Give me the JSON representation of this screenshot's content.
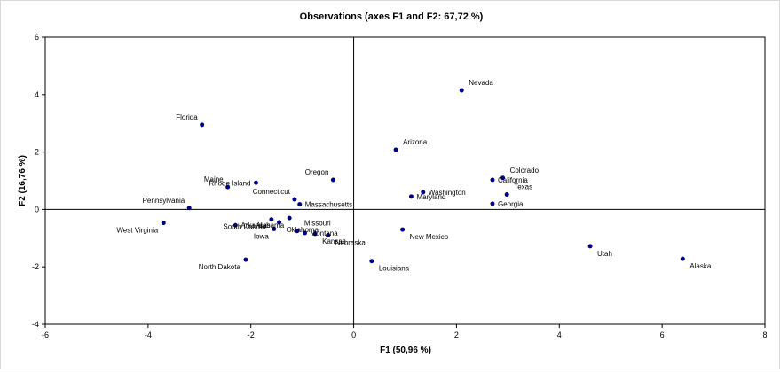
{
  "chart_data": {
    "type": "scatter",
    "title": "Observations (axes F1 and F2: 67,72 %)",
    "xlabel": "F1 (50,96 %)",
    "ylabel": "F2 (16,76 %)",
    "xlim": [
      -6,
      8
    ],
    "ylim": [
      -4,
      6
    ],
    "xticks": [
      -6,
      -4,
      -2,
      0,
      2,
      4,
      6,
      8
    ],
    "yticks": [
      -4,
      -2,
      0,
      2,
      4,
      6
    ],
    "grid": false,
    "marker_color": "#000080",
    "points": [
      {
        "name": "Nevada",
        "x": 2.1,
        "y": 4.15
      },
      {
        "name": "Florida",
        "x": -2.95,
        "y": 2.95
      },
      {
        "name": "Arizona",
        "x": 0.82,
        "y": 2.08
      },
      {
        "name": "California",
        "x": 2.7,
        "y": 1.03
      },
      {
        "name": "Colorado",
        "x": 2.9,
        "y": 1.1
      },
      {
        "name": "Rhode Island",
        "x": -1.9,
        "y": 0.93
      },
      {
        "name": "Maine",
        "x": -2.45,
        "y": 0.78
      },
      {
        "name": "Oregon",
        "x": -0.4,
        "y": 1.03
      },
      {
        "name": "Washington",
        "x": 1.35,
        "y": 0.6
      },
      {
        "name": "Maryland",
        "x": 1.12,
        "y": 0.45
      },
      {
        "name": "Texas",
        "x": 2.98,
        "y": 0.52
      },
      {
        "name": "Georgia",
        "x": 2.7,
        "y": 0.2
      },
      {
        "name": "Connecticut",
        "x": -1.15,
        "y": 0.35
      },
      {
        "name": "Massachusetts",
        "x": -1.05,
        "y": 0.18
      },
      {
        "name": "Pennsylvania",
        "x": -3.2,
        "y": 0.05
      },
      {
        "name": "West Virginia",
        "x": -3.7,
        "y": -0.47
      },
      {
        "name": "Arkansas",
        "x": -2.3,
        "y": -0.55
      },
      {
        "name": "Iowa",
        "x": -1.55,
        "y": -0.68
      },
      {
        "name": "South Dakota",
        "x": -1.6,
        "y": -0.35
      },
      {
        "name": "Oklahoma",
        "x": -1.45,
        "y": -0.45
      },
      {
        "name": "Alabama",
        "x": -1.25,
        "y": -0.3
      },
      {
        "name": "Missouri",
        "x": -1.1,
        "y": -0.75
      },
      {
        "name": "Montana",
        "x": -0.95,
        "y": -0.82
      },
      {
        "name": "Kansas",
        "x": -0.75,
        "y": -0.85
      },
      {
        "name": "Nebraska",
        "x": -0.5,
        "y": -0.9
      },
      {
        "name": "New Mexico",
        "x": 0.95,
        "y": -0.7
      },
      {
        "name": "North Dakota",
        "x": -2.1,
        "y": -1.75
      },
      {
        "name": "Louisiana",
        "x": 0.35,
        "y": -1.8
      },
      {
        "name": "Utah",
        "x": 4.6,
        "y": -1.28
      },
      {
        "name": "Alaska",
        "x": 6.4,
        "y": -1.72
      }
    ],
    "label_offsets_note": "label placement relative to marker, in chart-relative words",
    "label_positions": {
      "Nevada": "upper-right",
      "Florida": "upper-left",
      "Arizona": "upper-right",
      "California": "right",
      "Colorado": "upper-right",
      "Rhode Island": "left",
      "Maine": "upper-left",
      "Oregon": "upper-left",
      "Washington": "right",
      "Maryland": "right",
      "Texas": "upper-right",
      "Georgia": "right",
      "Connecticut": "upper-left",
      "Massachusetts": "right",
      "Pennsylvania": "upper-left",
      "West Virginia": "lower-left",
      "Arkansas": "right",
      "Iowa": "lower-left",
      "South Dakota": "lower-left",
      "Oklahoma": "lower-right",
      "Alabama": "lower-left",
      "Missouri": "upper-right",
      "Montana": "right",
      "Kansas": "lower-right",
      "Nebraska": "lower-right",
      "New Mexico": "lower-right",
      "North Dakota": "lower-left",
      "Louisiana": "lower-right",
      "Utah": "lower-right",
      "Alaska": "lower-right"
    }
  }
}
